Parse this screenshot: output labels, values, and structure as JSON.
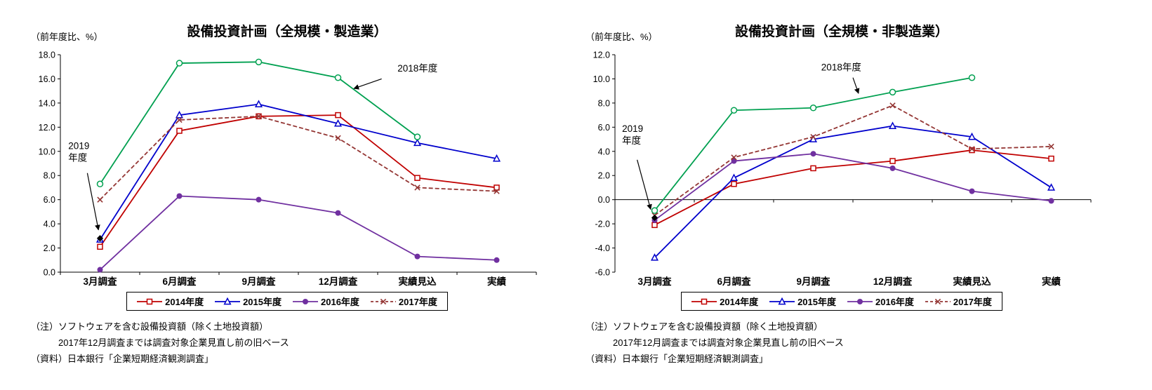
{
  "page": {
    "background": "#ffffff"
  },
  "chart_data": [
    {
      "type": "line",
      "title": "設備投資計画（全規模・製造業）",
      "ylabel": "（前年度比、%）",
      "ylim": [
        0,
        18
      ],
      "ytick_step": 2,
      "ytick_decimals": 1,
      "grid": false,
      "legend_position": "bottom",
      "categories": [
        "3月調査",
        "6月調査",
        "9月調査",
        "12月調査",
        "実績見込",
        "実績"
      ],
      "series": [
        {
          "name": "2014年度",
          "color": "#c00000",
          "marker": "square-open",
          "dash": "solid",
          "in_legend": true,
          "values": [
            2.1,
            11.7,
            12.9,
            13.0,
            7.8,
            7.0
          ]
        },
        {
          "name": "2015年度",
          "color": "#0000cc",
          "marker": "triangle-open",
          "dash": "solid",
          "in_legend": true,
          "values": [
            2.7,
            13.0,
            13.9,
            12.3,
            10.7,
            9.4
          ]
        },
        {
          "name": "2016年度",
          "color": "#7030a0",
          "marker": "circle-filled",
          "dash": "solid",
          "in_legend": true,
          "values": [
            0.2,
            6.3,
            6.0,
            4.9,
            1.3,
            1.0
          ]
        },
        {
          "name": "2017年度",
          "color": "#943634",
          "marker": "x",
          "dash": "dashed",
          "in_legend": true,
          "values": [
            6.0,
            12.6,
            12.9,
            11.1,
            7.0,
            6.7
          ]
        },
        {
          "name": "2018年度",
          "color": "#00a050",
          "marker": "circle-open",
          "dash": "solid",
          "in_legend": false,
          "values": [
            7.3,
            17.3,
            17.4,
            16.1,
            11.2,
            null
          ]
        },
        {
          "name": "2019年度",
          "color": "#000000",
          "marker": "diamond-filled",
          "dash": "solid",
          "in_legend": false,
          "values": [
            2.8,
            null,
            null,
            null,
            null,
            null
          ]
        }
      ],
      "annotations": [
        {
          "lines": [
            "2018年度"
          ],
          "tx": 3.75,
          "ty": 16.6,
          "arrow": {
            "x1": 3.55,
            "y1": 16.0,
            "x2": 3.2,
            "y2": 15.2
          }
        },
        {
          "lines": [
            "2019",
            "年度"
          ],
          "tx": -0.4,
          "ty": 10.2,
          "arrow": {
            "x1": -0.16,
            "y1": 8.2,
            "x2": -0.02,
            "y2": 3.5
          }
        }
      ],
      "notes": [
        "（注）ソフトウェアを含む設備投資額（除く土地投資額）",
        "　　　2017年12月調査までは調査対象企業見直し前の旧ベース",
        "（資料）日本銀行「企業短期経済観測調査」"
      ]
    },
    {
      "type": "line",
      "title": "設備投資計画（全規模・非製造業）",
      "ylabel": "（前年度比、%）",
      "ylim": [
        -6,
        12
      ],
      "ytick_step": 2,
      "ytick_decimals": 1,
      "grid": false,
      "legend_position": "bottom",
      "categories": [
        "3月調査",
        "6月調査",
        "9月調査",
        "12月調査",
        "実績見込",
        "実績"
      ],
      "series": [
        {
          "name": "2014年度",
          "color": "#c00000",
          "marker": "square-open",
          "dash": "solid",
          "in_legend": true,
          "values": [
            -2.1,
            1.3,
            2.6,
            3.2,
            4.1,
            3.4
          ]
        },
        {
          "name": "2015年度",
          "color": "#0000cc",
          "marker": "triangle-open",
          "dash": "solid",
          "in_legend": true,
          "values": [
            -4.8,
            1.8,
            5.0,
            6.1,
            5.2,
            1.0
          ]
        },
        {
          "name": "2016年度",
          "color": "#7030a0",
          "marker": "circle-filled",
          "dash": "solid",
          "in_legend": true,
          "values": [
            -1.7,
            3.2,
            3.8,
            2.6,
            0.7,
            -0.1
          ]
        },
        {
          "name": "2017年度",
          "color": "#943634",
          "marker": "x",
          "dash": "dashed",
          "in_legend": true,
          "values": [
            -1.3,
            3.5,
            5.2,
            7.8,
            4.2,
            4.4
          ]
        },
        {
          "name": "2018年度",
          "color": "#00a050",
          "marker": "circle-open",
          "dash": "solid",
          "in_legend": false,
          "values": [
            -0.9,
            7.4,
            7.6,
            8.9,
            10.1,
            null
          ]
        },
        {
          "name": "2019年度",
          "color": "#000000",
          "marker": "diamond-filled",
          "dash": "solid",
          "in_legend": false,
          "values": [
            -1.5,
            null,
            null,
            null,
            null,
            null
          ]
        }
      ],
      "annotations": [
        {
          "lines": [
            "2018年度"
          ],
          "tx": 2.1,
          "ty": 10.7,
          "arrow": {
            "x1": 2.5,
            "y1": 10.1,
            "x2": 2.57,
            "y2": 8.8
          }
        },
        {
          "lines": [
            "2019",
            "年度"
          ],
          "tx": -0.41,
          "ty": 5.6,
          "arrow": {
            "x1": -0.22,
            "y1": 3.3,
            "x2": -0.05,
            "y2": -0.8
          }
        }
      ],
      "notes": [
        "（注）ソフトウェアを含む設備投資額（除く土地投資額）",
        "　　　2017年12月調査までは調査対象企業見直し前の旧ベース",
        "（資料）日本銀行「企業短期経済観測調査」"
      ]
    }
  ]
}
